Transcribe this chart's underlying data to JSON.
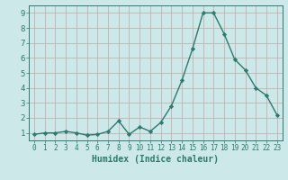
{
  "x": [
    0,
    1,
    2,
    3,
    4,
    5,
    6,
    7,
    8,
    9,
    10,
    11,
    12,
    13,
    14,
    15,
    16,
    17,
    18,
    19,
    20,
    21,
    22,
    23
  ],
  "y": [
    0.9,
    1.0,
    1.0,
    1.1,
    1.0,
    0.85,
    0.9,
    1.1,
    1.8,
    0.9,
    1.4,
    1.1,
    1.7,
    2.8,
    4.5,
    6.6,
    9.0,
    9.0,
    7.6,
    5.9,
    5.2,
    4.0,
    3.5,
    2.2
  ],
  "line_color": "#2d7a6e",
  "marker": "D",
  "marker_size": 2.2,
  "bg_color": "#cce8e8",
  "grid_color": "#c0a8a8",
  "xlabel": "Humidex (Indice chaleur)",
  "ylim": [
    0.5,
    9.5
  ],
  "xlim": [
    -0.5,
    23.5
  ],
  "yticks": [
    1,
    2,
    3,
    4,
    5,
    6,
    7,
    8,
    9
  ],
  "xticks": [
    0,
    1,
    2,
    3,
    4,
    5,
    6,
    7,
    8,
    9,
    10,
    11,
    12,
    13,
    14,
    15,
    16,
    17,
    18,
    19,
    20,
    21,
    22,
    23
  ],
  "tick_color": "#2d7a6e",
  "xlabel_fontsize": 7,
  "ytick_fontsize": 6.5,
  "xtick_fontsize": 5.5,
  "linewidth": 1.0
}
